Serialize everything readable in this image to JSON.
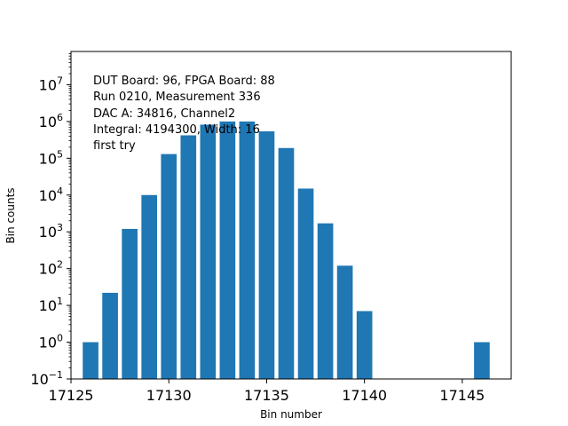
{
  "chart_data": {
    "type": "bar",
    "xlabel": "Bin number",
    "ylabel": "Bin counts",
    "xlim": [
      17125.0,
      17147.5
    ],
    "ylim": [
      0.1,
      80000000
    ],
    "yscale": "log",
    "x_ticks": [
      17125,
      17130,
      17135,
      17140,
      17145
    ],
    "y_ticks": [
      {
        "value": 0.1,
        "label": "10",
        "exp": "−1"
      },
      {
        "value": 1,
        "label": "10",
        "exp": "0"
      },
      {
        "value": 10,
        "label": "10",
        "exp": "1"
      },
      {
        "value": 100,
        "label": "10",
        "exp": "2"
      },
      {
        "value": 1000,
        "label": "10",
        "exp": "3"
      },
      {
        "value": 10000,
        "label": "10",
        "exp": "4"
      },
      {
        "value": 100000,
        "label": "10",
        "exp": "5"
      },
      {
        "value": 1000000,
        "label": "10",
        "exp": "6"
      },
      {
        "value": 10000000,
        "label": "10",
        "exp": "7"
      }
    ],
    "bar_color": "#1f77b4",
    "bar_width": 0.8,
    "x": [
      17126,
      17127,
      17128,
      17129,
      17130,
      17131,
      17132,
      17133,
      17134,
      17135,
      17136,
      17137,
      17138,
      17139,
      17140,
      17146
    ],
    "values": [
      1,
      22,
      1200,
      10000,
      130000,
      420000,
      820000,
      1000000,
      1000000,
      540000,
      190000,
      15000,
      1700,
      120,
      7,
      1
    ],
    "annotations": [
      "DUT Board: 96, FPGA Board: 88",
      "Run 0210, Measurement 336",
      "DAC A: 34816, Channel2",
      "Integral: 4194300, Width: 16",
      "first try"
    ],
    "grid": false
  }
}
